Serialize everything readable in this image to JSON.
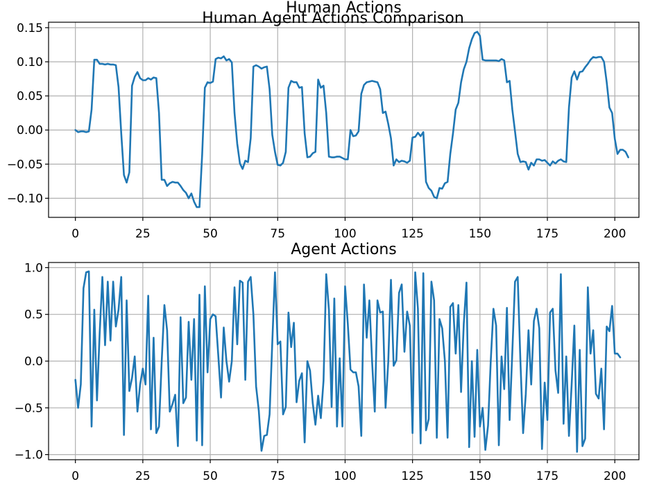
{
  "figure": {
    "suptitle": "Human Agent Actions Comparison"
  },
  "chart_data": [
    {
      "type": "line",
      "title": "Human Actions",
      "xlabel": "",
      "ylabel": "",
      "xlim": [
        -9.95,
        208.95
      ],
      "ylim": [
        -0.128,
        0.158
      ],
      "xticks": [
        0,
        25,
        50,
        75,
        100,
        125,
        150,
        175,
        200
      ],
      "xtick_labels": [
        "0",
        "25",
        "50",
        "75",
        "100",
        "125",
        "150",
        "175",
        "200"
      ],
      "yticks": [
        -0.1,
        -0.05,
        0.0,
        0.05,
        0.1,
        0.15
      ],
      "ytick_labels": [
        "−0.10",
        "−0.05",
        "0.00",
        "0.05",
        "0.10",
        "0.15"
      ],
      "grid": true,
      "color": "#1f77b4",
      "x_start": 0,
      "x_step": 1,
      "series": [
        {
          "values": [
            0.0,
            -0.003,
            -0.002,
            -0.002,
            -0.003,
            -0.002,
            0.03,
            0.103,
            0.103,
            0.097,
            0.097,
            0.096,
            0.097,
            0.096,
            0.096,
            0.095,
            0.063,
            -0.005,
            -0.066,
            -0.077,
            -0.062,
            0.065,
            0.078,
            0.085,
            0.076,
            0.073,
            0.073,
            0.076,
            0.074,
            0.077,
            0.076,
            0.025,
            -0.073,
            -0.073,
            -0.082,
            -0.078,
            -0.076,
            -0.077,
            -0.077,
            -0.082,
            -0.088,
            -0.092,
            -0.1,
            -0.093,
            -0.105,
            -0.113,
            -0.113,
            -0.036,
            0.062,
            0.07,
            0.069,
            0.071,
            0.104,
            0.106,
            0.105,
            0.108,
            0.102,
            0.104,
            0.099,
            0.025,
            -0.02,
            -0.049,
            -0.057,
            -0.045,
            -0.047,
            -0.012,
            0.093,
            0.095,
            0.093,
            0.09,
            0.092,
            0.093,
            0.06,
            -0.007,
            -0.032,
            -0.051,
            -0.052,
            -0.048,
            -0.032,
            0.062,
            0.072,
            0.07,
            0.07,
            0.062,
            0.063,
            -0.005,
            -0.04,
            -0.039,
            -0.034,
            -0.032,
            0.074,
            0.062,
            0.065,
            0.025,
            -0.039,
            -0.04,
            -0.04,
            -0.039,
            -0.039,
            -0.041,
            -0.043,
            -0.043,
            0.0,
            -0.009,
            -0.008,
            -0.002,
            0.053,
            0.066,
            0.07,
            0.071,
            0.072,
            0.071,
            0.07,
            0.06,
            0.025,
            0.027,
            0.009,
            -0.012,
            -0.052,
            -0.043,
            -0.047,
            -0.045,
            -0.046,
            -0.048,
            -0.045,
            -0.011,
            -0.01,
            -0.004,
            -0.009,
            -0.003,
            -0.076,
            -0.085,
            -0.089,
            -0.098,
            -0.1,
            -0.085,
            -0.086,
            -0.078,
            -0.076,
            -0.035,
            -0.005,
            0.03,
            0.04,
            0.07,
            0.089,
            0.1,
            0.12,
            0.133,
            0.142,
            0.144,
            0.138,
            0.103,
            0.102,
            0.102,
            0.102,
            0.102,
            0.102,
            0.101,
            0.104,
            0.102,
            0.07,
            0.072,
            0.03,
            -0.002,
            -0.035,
            -0.047,
            -0.046,
            -0.047,
            -0.058,
            -0.048,
            -0.052,
            -0.043,
            -0.043,
            -0.045,
            -0.044,
            -0.048,
            -0.052,
            -0.046,
            -0.049,
            -0.045,
            -0.043,
            -0.046,
            -0.047,
            0.033,
            0.077,
            0.086,
            0.074,
            0.085,
            0.086,
            0.092,
            0.097,
            0.103,
            0.107,
            0.106,
            0.107,
            0.107,
            0.1,
            0.07,
            0.033,
            0.025,
            -0.013,
            -0.035,
            -0.029,
            -0.029,
            -0.032,
            -0.04
          ]
        }
      ]
    },
    {
      "type": "line",
      "title": "Agent Actions",
      "xlabel": "",
      "ylabel": "",
      "xlim": [
        -9.95,
        208.95
      ],
      "ylim": [
        -1.055,
        1.055
      ],
      "xticks": [
        0,
        25,
        50,
        75,
        100,
        125,
        150,
        175,
        200
      ],
      "xtick_labels": [
        "0",
        "25",
        "50",
        "75",
        "100",
        "125",
        "150",
        "175",
        "200"
      ],
      "yticks": [
        -1.0,
        -0.5,
        0.0,
        0.5,
        1.0
      ],
      "ytick_labels": [
        "−1.0",
        "−0.5",
        "0.0",
        "0.5",
        "1.0"
      ],
      "grid": true,
      "color": "#1f77b4",
      "x_start": 0,
      "x_step": 1,
      "series": [
        {
          "values": [
            -0.2,
            -0.5,
            -0.25,
            0.78,
            0.95,
            0.96,
            -0.7,
            0.55,
            -0.42,
            0.3,
            0.9,
            0.17,
            0.85,
            0.22,
            0.85,
            0.37,
            0.55,
            0.9,
            -0.79,
            0.65,
            -0.32,
            -0.18,
            0.05,
            -0.54,
            -0.25,
            -0.08,
            -0.25,
            0.7,
            -0.73,
            0.25,
            -0.77,
            -0.7,
            0.0,
            0.6,
            0.33,
            -0.54,
            -0.46,
            -0.36,
            -0.91,
            0.47,
            -0.45,
            -0.39,
            0.42,
            -0.2,
            0.45,
            -0.85,
            0.71,
            -0.9,
            0.8,
            -0.12,
            0.45,
            0.5,
            0.48,
            0.05,
            -0.39,
            0.36,
            0.0,
            -0.22,
            0.0,
            0.79,
            0.18,
            0.86,
            0.84,
            -0.2,
            0.85,
            0.9,
            0.5,
            -0.27,
            -0.53,
            -0.96,
            -0.8,
            -0.79,
            -0.57,
            0.2,
            0.95,
            0.18,
            0.21,
            -0.57,
            -0.49,
            0.52,
            0.15,
            0.41,
            -0.44,
            -0.21,
            -0.13,
            -0.87,
            0.0,
            -0.1,
            -0.45,
            -0.68,
            -0.37,
            -0.61,
            -0.21,
            0.93,
            0.55,
            -0.49,
            0.67,
            -0.7,
            0.03,
            -0.7,
            0.8,
            0.4,
            -0.09,
            -0.12,
            -0.12,
            -0.27,
            -0.8,
            0.82,
            0.25,
            0.65,
            0.0,
            -0.54,
            0.65,
            0.52,
            0.53,
            -0.5,
            -0.01,
            0.87,
            -0.05,
            0.01,
            0.73,
            0.82,
            0.1,
            0.53,
            0.38,
            -0.77,
            0.95,
            0.56,
            -0.88,
            0.94,
            -0.74,
            -0.62,
            0.85,
            0.65,
            -0.82,
            0.45,
            0.35,
            0.0,
            -0.82,
            0.58,
            0.62,
            0.08,
            0.6,
            -0.33,
            0.4,
            0.84,
            -0.92,
            0.0,
            -0.81,
            0.12,
            -0.7,
            -0.5,
            -0.95,
            -0.69,
            0.0,
            0.56,
            0.38,
            -0.9,
            0.05,
            -0.3,
            0.57,
            -0.63,
            0.1,
            0.85,
            0.9,
            0.0,
            -0.77,
            -0.35,
            0.33,
            -0.25,
            0.43,
            0.56,
            0.35,
            -0.94,
            -0.23,
            -0.63,
            0.52,
            0.56,
            -0.1,
            -0.34,
            0.93,
            -0.67,
            0.05,
            -0.8,
            -0.25,
            0.38,
            -0.97,
            0.12,
            -0.91,
            -0.83,
            0.79,
            0.08,
            0.33,
            -0.35,
            -0.4,
            -0.08,
            -0.73,
            0.37,
            0.32,
            0.59,
            0.08,
            0.08,
            0.04
          ]
        }
      ]
    }
  ]
}
